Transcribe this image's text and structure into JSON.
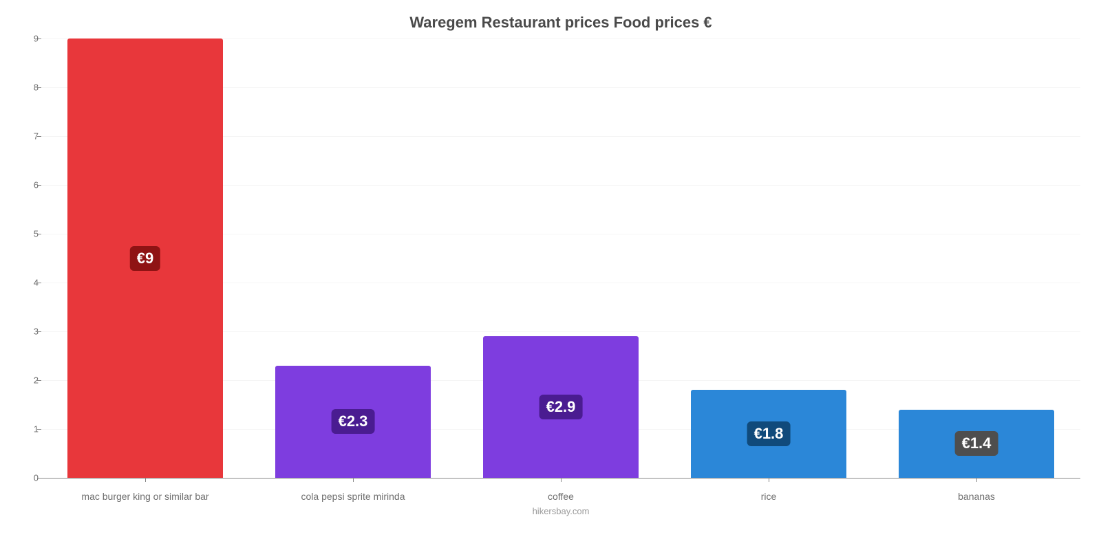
{
  "chart": {
    "type": "bar",
    "title": "Waregem Restaurant prices Food prices €",
    "title_fontsize": 22,
    "title_color": "#4a4a4a",
    "source": "hikersbay.com",
    "background_color": "#ffffff",
    "grid_color": "#f5f5f5",
    "axis_color": "#868686",
    "tick_label_color": "#6e6e6e",
    "tick_label_fontsize": 13,
    "x_label_fontsize": 14,
    "ylim": [
      0,
      9
    ],
    "ytick_step": 1,
    "bar_width_pct": 75,
    "value_prefix": "€",
    "value_label_fontsize": 22,
    "categories": [
      "mac burger king or similar bar",
      "cola pepsi sprite mirinda",
      "coffee",
      "rice",
      "bananas"
    ],
    "values": [
      9,
      2.3,
      2.9,
      1.8,
      1.4
    ],
    "bar_colors": [
      "#e8373b",
      "#7e3ddf",
      "#7e3ddf",
      "#2b87d8",
      "#2b87d8"
    ],
    "label_bg_colors": [
      "#8f1314",
      "#4a1c91",
      "#4a1c91",
      "#104a7b",
      "#4e4e4e"
    ]
  }
}
